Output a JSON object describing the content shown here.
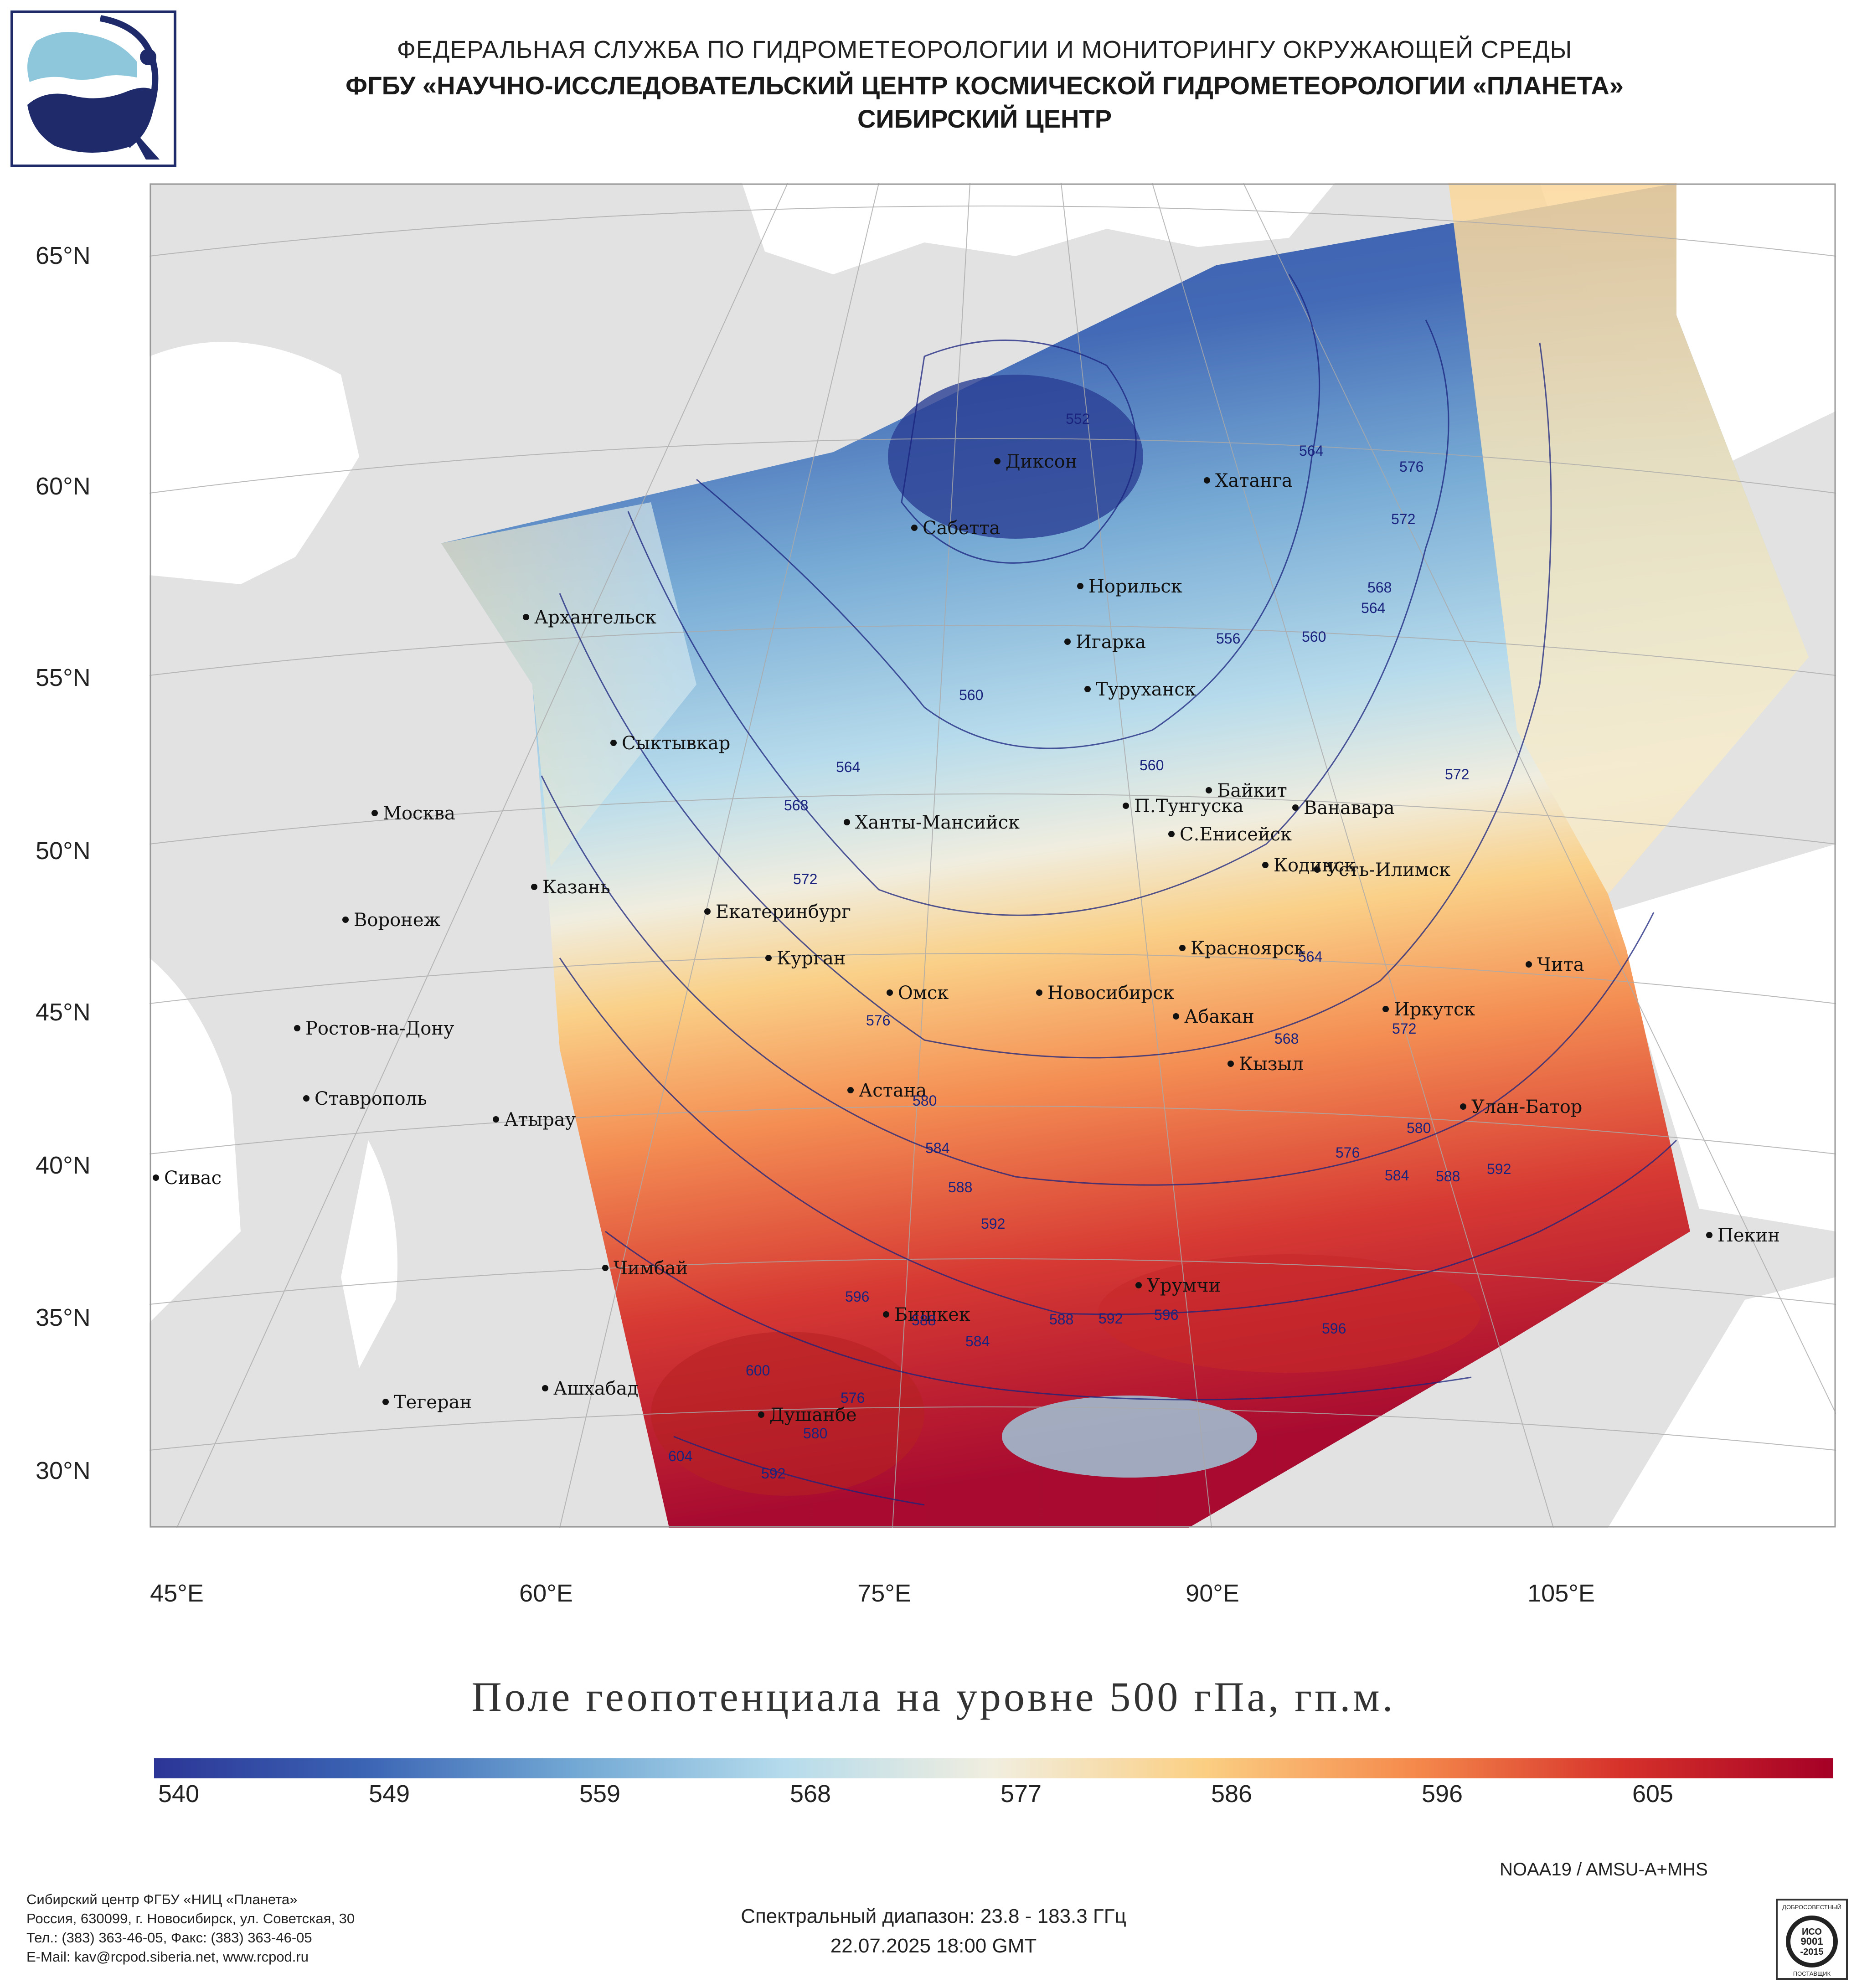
{
  "header": {
    "line1": "ФЕДЕРАЛЬНАЯ СЛУЖБА ПО ГИДРОМЕТЕОРОЛОГИИ И МОНИТОРИНГУ ОКРУЖАЮЩЕЙ СРЕДЫ",
    "line2": "ФГБУ «НАУЧНО-ИССЛЕДОВАТЕЛЬСКИЙ ЦЕНТР КОСМИЧЕСКОЙ ГИДРОМЕТЕОРОЛОГИИ «ПЛАНЕТА»",
    "line3": "СИБИРСКИЙ ЦЕНТР"
  },
  "map": {
    "lat_labels": [
      "65°N",
      "60°N",
      "55°N",
      "50°N",
      "45°N",
      "40°N",
      "35°N",
      "30°N"
    ],
    "lon_labels": [
      "45°E",
      "60°E",
      "75°E",
      "90°E",
      "105°E"
    ],
    "cities": [
      {
        "name": "Диксон"
      },
      {
        "name": "Хатанга"
      },
      {
        "name": "Сабетта"
      },
      {
        "name": "Норильск"
      },
      {
        "name": "Архангельск"
      },
      {
        "name": "Игарка"
      },
      {
        "name": "Туруханск"
      },
      {
        "name": "Сыктывкар"
      },
      {
        "name": "Москва"
      },
      {
        "name": "Байкит"
      },
      {
        "name": "П.Тунгуска"
      },
      {
        "name": "Ванавара"
      },
      {
        "name": "Ханты-Мансийск"
      },
      {
        "name": "С.Енисейск"
      },
      {
        "name": "Казань"
      },
      {
        "name": "Кодинск"
      },
      {
        "name": "Усть-Илимск"
      },
      {
        "name": "Екатеринбург"
      },
      {
        "name": "Воронеж"
      },
      {
        "name": "Красноярск"
      },
      {
        "name": "Курган"
      },
      {
        "name": "Чита"
      },
      {
        "name": "Омск"
      },
      {
        "name": "Новосибирск"
      },
      {
        "name": "Иркутск"
      },
      {
        "name": "Абакан"
      },
      {
        "name": "Ростов-на-Дону"
      },
      {
        "name": "Кызыл"
      },
      {
        "name": "Астана"
      },
      {
        "name": "Улан-Батор"
      },
      {
        "name": "Ставрополь"
      },
      {
        "name": "Атырау"
      },
      {
        "name": "Сивас"
      },
      {
        "name": "Пекин"
      },
      {
        "name": "Чимбай"
      },
      {
        "name": "Урумчи"
      },
      {
        "name": "Бишкек"
      },
      {
        "name": "Ашхабад"
      },
      {
        "name": "Тегеран"
      },
      {
        "name": "Душанбе"
      }
    ],
    "isolines": [
      "552",
      "564",
      "576",
      "572",
      "568",
      "564",
      "556",
      "560",
      "560",
      "564",
      "560",
      "572",
      "568",
      "572",
      "564",
      "576",
      "568",
      "572",
      "580",
      "576",
      "580",
      "584",
      "588",
      "584",
      "588",
      "592",
      "592",
      "596",
      "588",
      "584",
      "588",
      "592",
      "596",
      "596",
      "600",
      "576",
      "580",
      "604",
      "592"
    ],
    "colors": {
      "land": "#e0e0e0",
      "ocean": "#ffffff",
      "border": "#bbbbbb",
      "isoline": "#1a237e"
    }
  },
  "title": "Поле геопотенциала на уровне 500 гПа, гп.м.",
  "colorbar": {
    "ticks": [
      "540",
      "549",
      "559",
      "568",
      "577",
      "586",
      "596",
      "605"
    ],
    "stops": [
      "#2c3596",
      "#3b64b4",
      "#72a8d4",
      "#b5dbec",
      "#f1eedf",
      "#fbcf83",
      "#f58a4c",
      "#d6312a",
      "#a50026"
    ]
  },
  "satellite": "NOAA19 / AMSU-A+MHS",
  "footer": {
    "org": "Сибирский центр ФГБУ «НИЦ «Планета»",
    "address": "Россия, 630099, г. Новосибирск, ул. Советская, 30",
    "phone": "Тел.: (383) 363-46-05, Факс: (383) 363-46-05",
    "email": "E-Mail: kav@rcpod.siberia.net, www.rcpod.ru",
    "spectral": "Спектральный диапазон: 23.8 - 183.3 ГГц",
    "datetime": "22.07.2025 18:00 GMT"
  },
  "iso_badge": {
    "top": "ДОБРОСОВЕСТНЫЙ",
    "l1": "ИСО",
    "l2": "9001",
    "l3": "-2015",
    "bottom": "ПОСТАВЩИК"
  }
}
